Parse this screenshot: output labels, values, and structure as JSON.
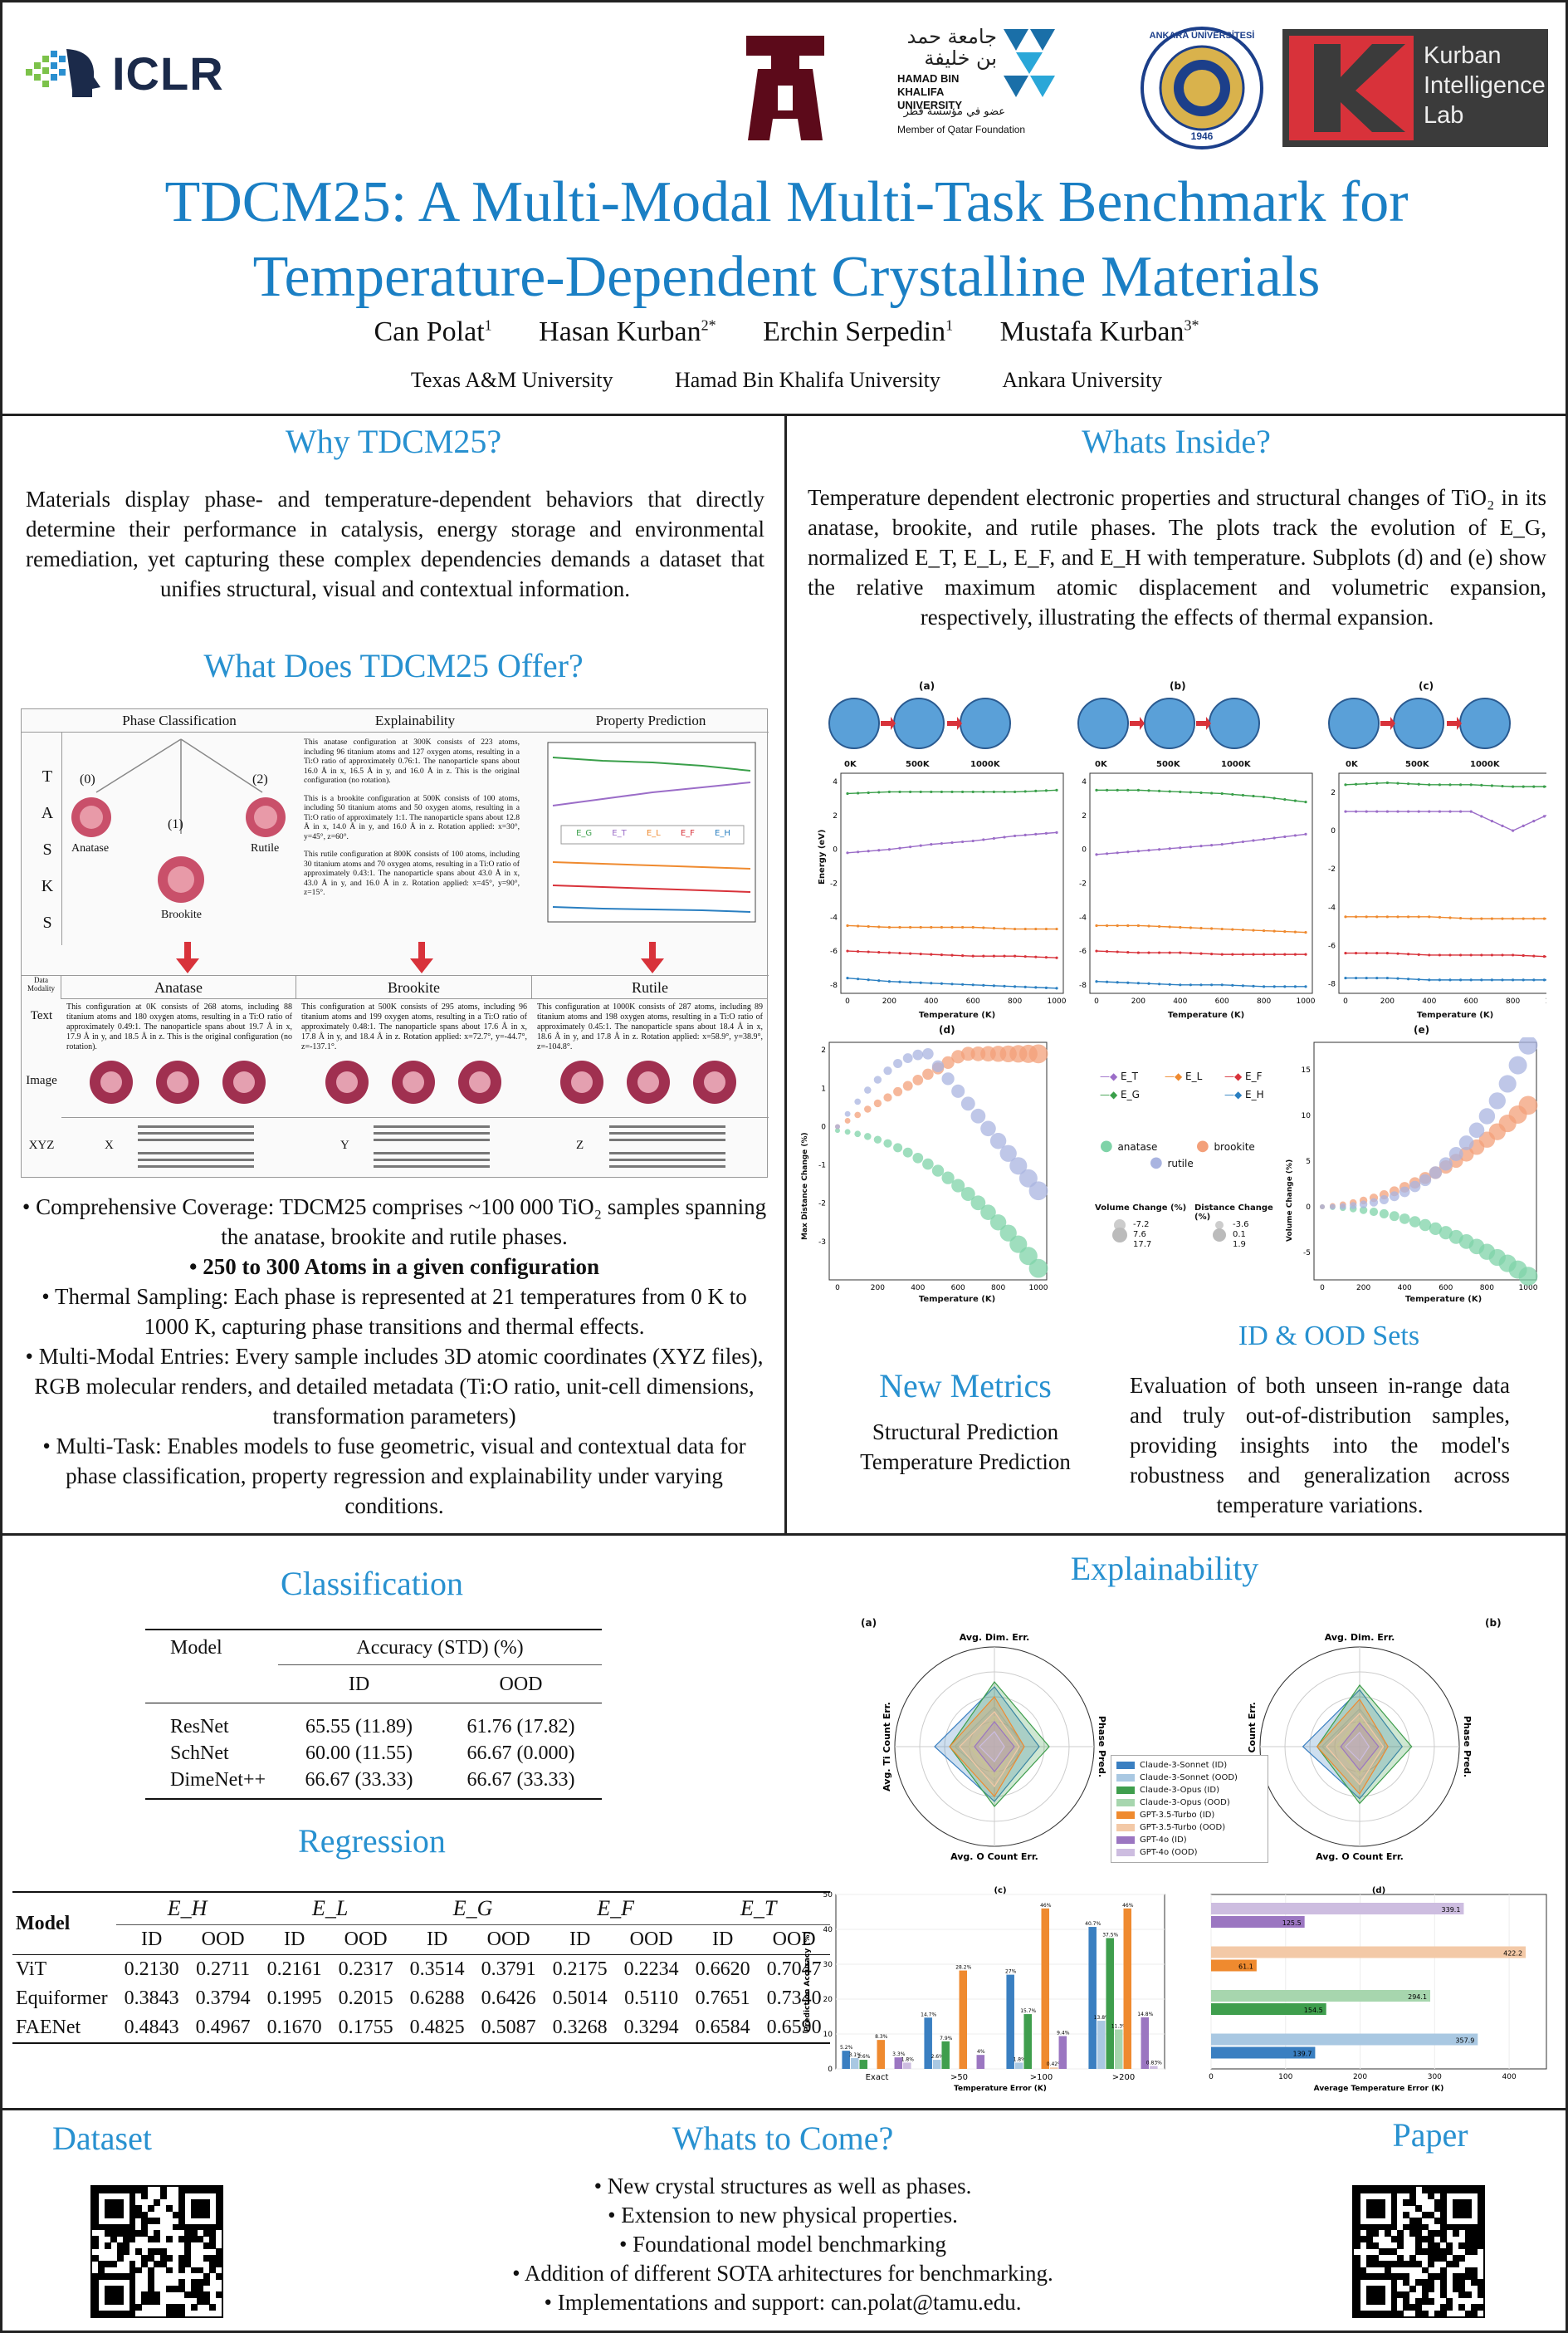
{
  "header": {
    "iclr": "ICLR",
    "tamu": "ĀM",
    "hbku_arabic": "جامعة حمد بن خليفة",
    "hbku": "HAMAD BIN KHALIFA UNIVERSITY",
    "hbku_arabic_sub": "عضو في مؤسسة قطر",
    "hbku_sub": "Member of Qatar Foundation",
    "ankara": "ANKARA ÜNİVERSİTESİ",
    "ankara_year": "1946",
    "kurban_line1": "Kurban",
    "kurban_line2": "Intelligence",
    "kurban_line3": "Lab",
    "title_line1": "TDCM25: A Multi-Modal Multi-Task Benchmark for",
    "title_line2": "Temperature-Dependent Crystalline Materials",
    "authors": [
      "Can Polat",
      "Hasan Kurban",
      "Erchin Serpedin",
      "Mustafa Kurban"
    ],
    "author_sup": [
      "1",
      "2*",
      "1",
      "3*"
    ],
    "affiliations": [
      "Texas A&M University",
      "Hamad Bin Khalifa University",
      "Ankara University"
    ]
  },
  "why": {
    "heading": "Why TDCM25?",
    "text": "Materials display phase- and temperature-dependent behaviors that directly determine their performance in catalysis, energy storage and environmental remediation, yet capturing these complex dependencies demands a dataset that unifies structural, visual and contextual information."
  },
  "offer": {
    "heading": "What Does TDCM25 Offer?",
    "tasks_label": "T A S K S",
    "col_heads": [
      "Phase Classification",
      "Explainability",
      "Property Prediction"
    ],
    "phases": [
      "(0)",
      "(1)",
      "(2)"
    ],
    "phase_names": [
      "Anatase",
      "Brookite",
      "Rutile"
    ],
    "explain_texts": [
      "This anatase configuration at 300K consists of 223 atoms, including 96 titanium atoms and 127 oxygen atoms, resulting in a Ti:O ratio of approximately 0.76:1. The nanoparticle spans about 16.0 Å in x, 16.5 Å in y, and 16.0 Å in z. This is the original configuration (no rotation).",
      "This is a brookite configuration at 500K consists of 100 atoms, including 50 titanium atoms and 50 oxygen atoms, resulting in a Ti:O ratio of approximately 1:1. The nanoparticle spans about 12.8 Å in x, 14.0 Å in y, and 16.0 Å in z. Rotation applied: x=30°, y=45°, z=60°.",
      "This rutile configuration at 800K consists of 100 atoms, including 30 titanium atoms and 70 oxygen atoms, resulting in a Ti:O ratio of approximately 0.43:1. The nanoparticle spans about 43.0 Å in x, 43.0 Å in y, and 16.0 Å in z. Rotation applied: x=45°, y=90°, z=15°."
    ],
    "legend": [
      "E_G",
      "E_T",
      "E_L",
      "E_F",
      "E_H"
    ],
    "modality_label": "Data Modality",
    "row_labels": [
      "Text",
      "Image",
      "XYZ"
    ],
    "phase_texts": [
      "This configuration at 0K consists of 268 atoms, including 88 titanium atoms and 180 oxygen atoms, resulting in a Ti:O ratio of approximately 0.49:1. The nanoparticle spans about 19.7 Å in x, 17.9 Å in y, and 18.5 Å in z. This is the original configuration (no rotation).",
      "This configuration at 500K consists of 295 atoms, including 96 titanium atoms and 199 oxygen atoms, resulting in a Ti:O ratio of approximately 0.48:1. The nanoparticle spans about 17.6 Å in x, 17.8 Å in y, and 18.4 Å in z. Rotation applied: x=72.7°, y=-44.7°, z=-137.1°.",
      "This configuration at 1000K consists of 287 atoms, including 89 titanium atoms and 198 oxygen atoms, resulting in a Ti:O ratio of approximately 0.45:1. The nanoparticle spans about 18.4 Å in x, 18.6 Å in y, and 17.8 Å in z. Rotation applied: x=58.9°, y=38.9°, z=-104.8°."
    ],
    "xyz_axes": [
      "X",
      "Y",
      "Z"
    ]
  },
  "bullets": [
    "Comprehensive Coverage: TDCM25 comprises ~100 000 TiO₂ samples spanning the anatase, brookite and rutile phases.",
    "250 to 300 Atoms in a given configuration",
    "Thermal Sampling: Each phase is represented at 21 temperatures from 0 K to 1000 K, capturing phase transitions and thermal effects.",
    "Multi-Modal Entries: Every sample includes 3D atomic coordinates (XYZ files), RGB molecular renders, and detailed metadata (Ti:O ratio, unit-cell dimensions, transformation parameters)",
    "Multi-Task: Enables models to fuse geometric, visual and contextual data for phase classification, property regression and explainability under varying conditions."
  ],
  "inside": {
    "heading": "Whats Inside?",
    "text": "Temperature dependent electronic properties and structural changes of TiO₂ in its anatase, brookite, and rutile phases. The plots track the evolution of E_G, normalized E_T, E_L, E_F, and E_H with temperature. Subplots (d) and (e) show the relative maximum atomic displacement and volumetric expansion, respectively, illustrating the effects of thermal expansion.",
    "subplot_labels": [
      "(a)",
      "(b)",
      "(c)",
      "(d)",
      "(e)"
    ],
    "temps": [
      "0K",
      "500K",
      "1000K"
    ],
    "xlabel": "Temperature (K)",
    "ylabel_energy": "Energy (eV)",
    "ylabel_d": "Max Distance Change (%)",
    "ylabel_e": "Volume Change (%)",
    "legend_phase": [
      "anatase",
      "brookite",
      "rutile"
    ],
    "legend_vol_title": "Volume Change (%)",
    "legend_vol": [
      "-7.2",
      "7.6",
      "17.7"
    ],
    "legend_dist_title": "Distance Change (%)",
    "legend_dist": [
      "-3.6",
      "0.1",
      "1.9"
    ]
  },
  "metrics": {
    "heading": "New Metrics",
    "items": [
      "Structural Prediction",
      "Temperature Prediction"
    ]
  },
  "idood": {
    "heading": "ID & OOD Sets",
    "text": "Evaluation of both unseen in-range data and truly out-of-distribution samples, providing insights into the model's robustness and generalization across temperature variations."
  },
  "classification": {
    "heading": "Classification",
    "col_model": "Model",
    "col_acc": "Accuracy (STD) (%)",
    "col_id": "ID",
    "col_ood": "OOD",
    "rows": [
      {
        "model": "ResNet",
        "id": "65.55 (11.89)",
        "ood": "61.76 (17.82)"
      },
      {
        "model": "SchNet",
        "id": "60.00 (11.55)",
        "ood": "66.67 (0.000)"
      },
      {
        "model": "DimeNet++",
        "id": "66.67 (33.33)",
        "ood": "66.67 (33.33)"
      }
    ]
  },
  "regression": {
    "heading": "Regression",
    "col_model": "Model",
    "targets": [
      "E_H",
      "E_L",
      "E_G",
      "E_F",
      "E_T"
    ],
    "sub": [
      "ID",
      "OOD"
    ],
    "rows": [
      {
        "model": "ViT",
        "vals": [
          "0.2130",
          "0.2711",
          "0.2161",
          "0.2317",
          "0.3514",
          "0.3791",
          "0.2175",
          "0.2234",
          "0.6620",
          "0.7047"
        ]
      },
      {
        "model": "Equiformer",
        "vals": [
          "0.3843",
          "0.3794",
          "0.1995",
          "0.2015",
          "0.6288",
          "0.6426",
          "0.5014",
          "0.5110",
          "0.7651",
          "0.7340"
        ]
      },
      {
        "model": "FAENet",
        "vals": [
          "0.4843",
          "0.4967",
          "0.1670",
          "0.1755",
          "0.4825",
          "0.5087",
          "0.3268",
          "0.3294",
          "0.6584",
          "0.6590"
        ]
      }
    ]
  },
  "explain": {
    "heading": "Explainability",
    "radar_labels": [
      "(a)",
      "(b)"
    ],
    "radar_axes": [
      "Avg. Dim. Err.",
      "Phase Pred.",
      "Avg. O Count Err.",
      "Avg. Ti Count Err."
    ],
    "legend": [
      "Claude-3-Sonnet (ID)",
      "Claude-3-Sonnet (OOD)",
      "Claude-3-Opus (ID)",
      "Claude-3-Opus (OOD)",
      "GPT-3.5-Turbo (ID)",
      "GPT-3.5-Turbo (OOD)",
      "GPT-4o (ID)",
      "GPT-4o (OOD)"
    ],
    "legend_colors": [
      "#3a7fc1",
      "#a9c8e2",
      "#3f9e4d",
      "#a7d6ae",
      "#ef8a2f",
      "#f3c9a7",
      "#9b76c1",
      "#cdbde0"
    ],
    "panel_c": "(c)",
    "panel_d": "(d)",
    "c_ylabel": "Prediction Accuracy (%)",
    "c_xlabel": "Temperature Error (K)",
    "d_xlabel": "Average Temperature Error (K)"
  },
  "chart_data": [
    {
      "type": "bar",
      "title": "(c)",
      "xlabel": "Temperature Error (K)",
      "ylabel": "Prediction Accuracy (%)",
      "categories": [
        "Exact",
        ">50",
        ">100",
        ">200"
      ],
      "ylim": [
        0,
        50
      ],
      "series": [
        {
          "name": "Claude-3-Sonnet (ID)",
          "values": [
            5.2,
            14.7,
            27.0,
            40.7
          ]
        },
        {
          "name": "Claude-3-Sonnet (OOD)",
          "values": [
            3.1,
            2.6,
            1.8,
            13.8
          ]
        },
        {
          "name": "Claude-3-Opus (ID)",
          "values": [
            2.6,
            7.9,
            15.7,
            37.5
          ]
        },
        {
          "name": "Claude-3-Opus (OOD)",
          "values": [
            0.0,
            0.0,
            0.0,
            11.3
          ]
        },
        {
          "name": "GPT-3.5-Turbo (ID)",
          "values": [
            8.3,
            28.2,
            46.0,
            46.0
          ]
        },
        {
          "name": "GPT-3.5-Turbo (OOD)",
          "values": [
            0.0,
            0.0,
            0.42,
            0.0
          ]
        },
        {
          "name": "GPT-4o (ID)",
          "values": [
            3.3,
            4.0,
            9.4,
            14.8
          ]
        },
        {
          "name": "GPT-4o (OOD)",
          "values": [
            1.8,
            0.0,
            0.0,
            0.83
          ]
        }
      ]
    },
    {
      "type": "bar",
      "title": "(d)",
      "orientation": "horizontal",
      "xlabel": "Average Temperature Error (K)",
      "xlim": [
        0,
        450
      ],
      "categories": [
        "GPT-4o",
        "GPT-3.5-Turbo",
        "Claude-3-Opus",
        "Claude-3-Sonnet"
      ],
      "series": [
        {
          "name": "ID",
          "values": [
            125.5,
            61.1,
            154.5,
            139.7
          ]
        },
        {
          "name": "OOD",
          "values": [
            339.1,
            422.2,
            294.1,
            357.9
          ]
        }
      ]
    },
    {
      "type": "line",
      "title": "(a) anatase",
      "xlabel": "Temperature (K)",
      "ylabel": "Energy (eV)",
      "x": [
        0,
        200,
        400,
        600,
        800,
        1000
      ],
      "ylim": [
        -8.5,
        4.5
      ],
      "series": [
        {
          "name": "E_G",
          "values": [
            3.3,
            3.4,
            3.4,
            3.4,
            3.3,
            3.5
          ]
        },
        {
          "name": "E_T",
          "values": [
            -0.2,
            0.0,
            0.3,
            0.5,
            0.8,
            1.0
          ]
        },
        {
          "name": "E_L",
          "values": [
            -4.5,
            -4.6,
            -4.6,
            -4.6,
            -4.7,
            -4.7
          ]
        },
        {
          "name": "E_F",
          "values": [
            -6.0,
            -6.1,
            -6.2,
            -6.3,
            -6.3,
            -6.4
          ]
        },
        {
          "name": "E_H",
          "values": [
            -7.6,
            -7.8,
            -7.9,
            -8.0,
            -8.1,
            -8.2
          ]
        }
      ]
    }
  ],
  "footer": {
    "dataset": "Dataset",
    "paper": "Paper",
    "come_heading": "Whats to Come?",
    "come_items": [
      "New crystal structures as well as phases.",
      "Extension to new physical properties.",
      "Foundational model benchmarking",
      "Addition of different SOTA arhitectures for benchmarking.",
      "Implementations and support: can.polat@tamu.edu."
    ]
  }
}
